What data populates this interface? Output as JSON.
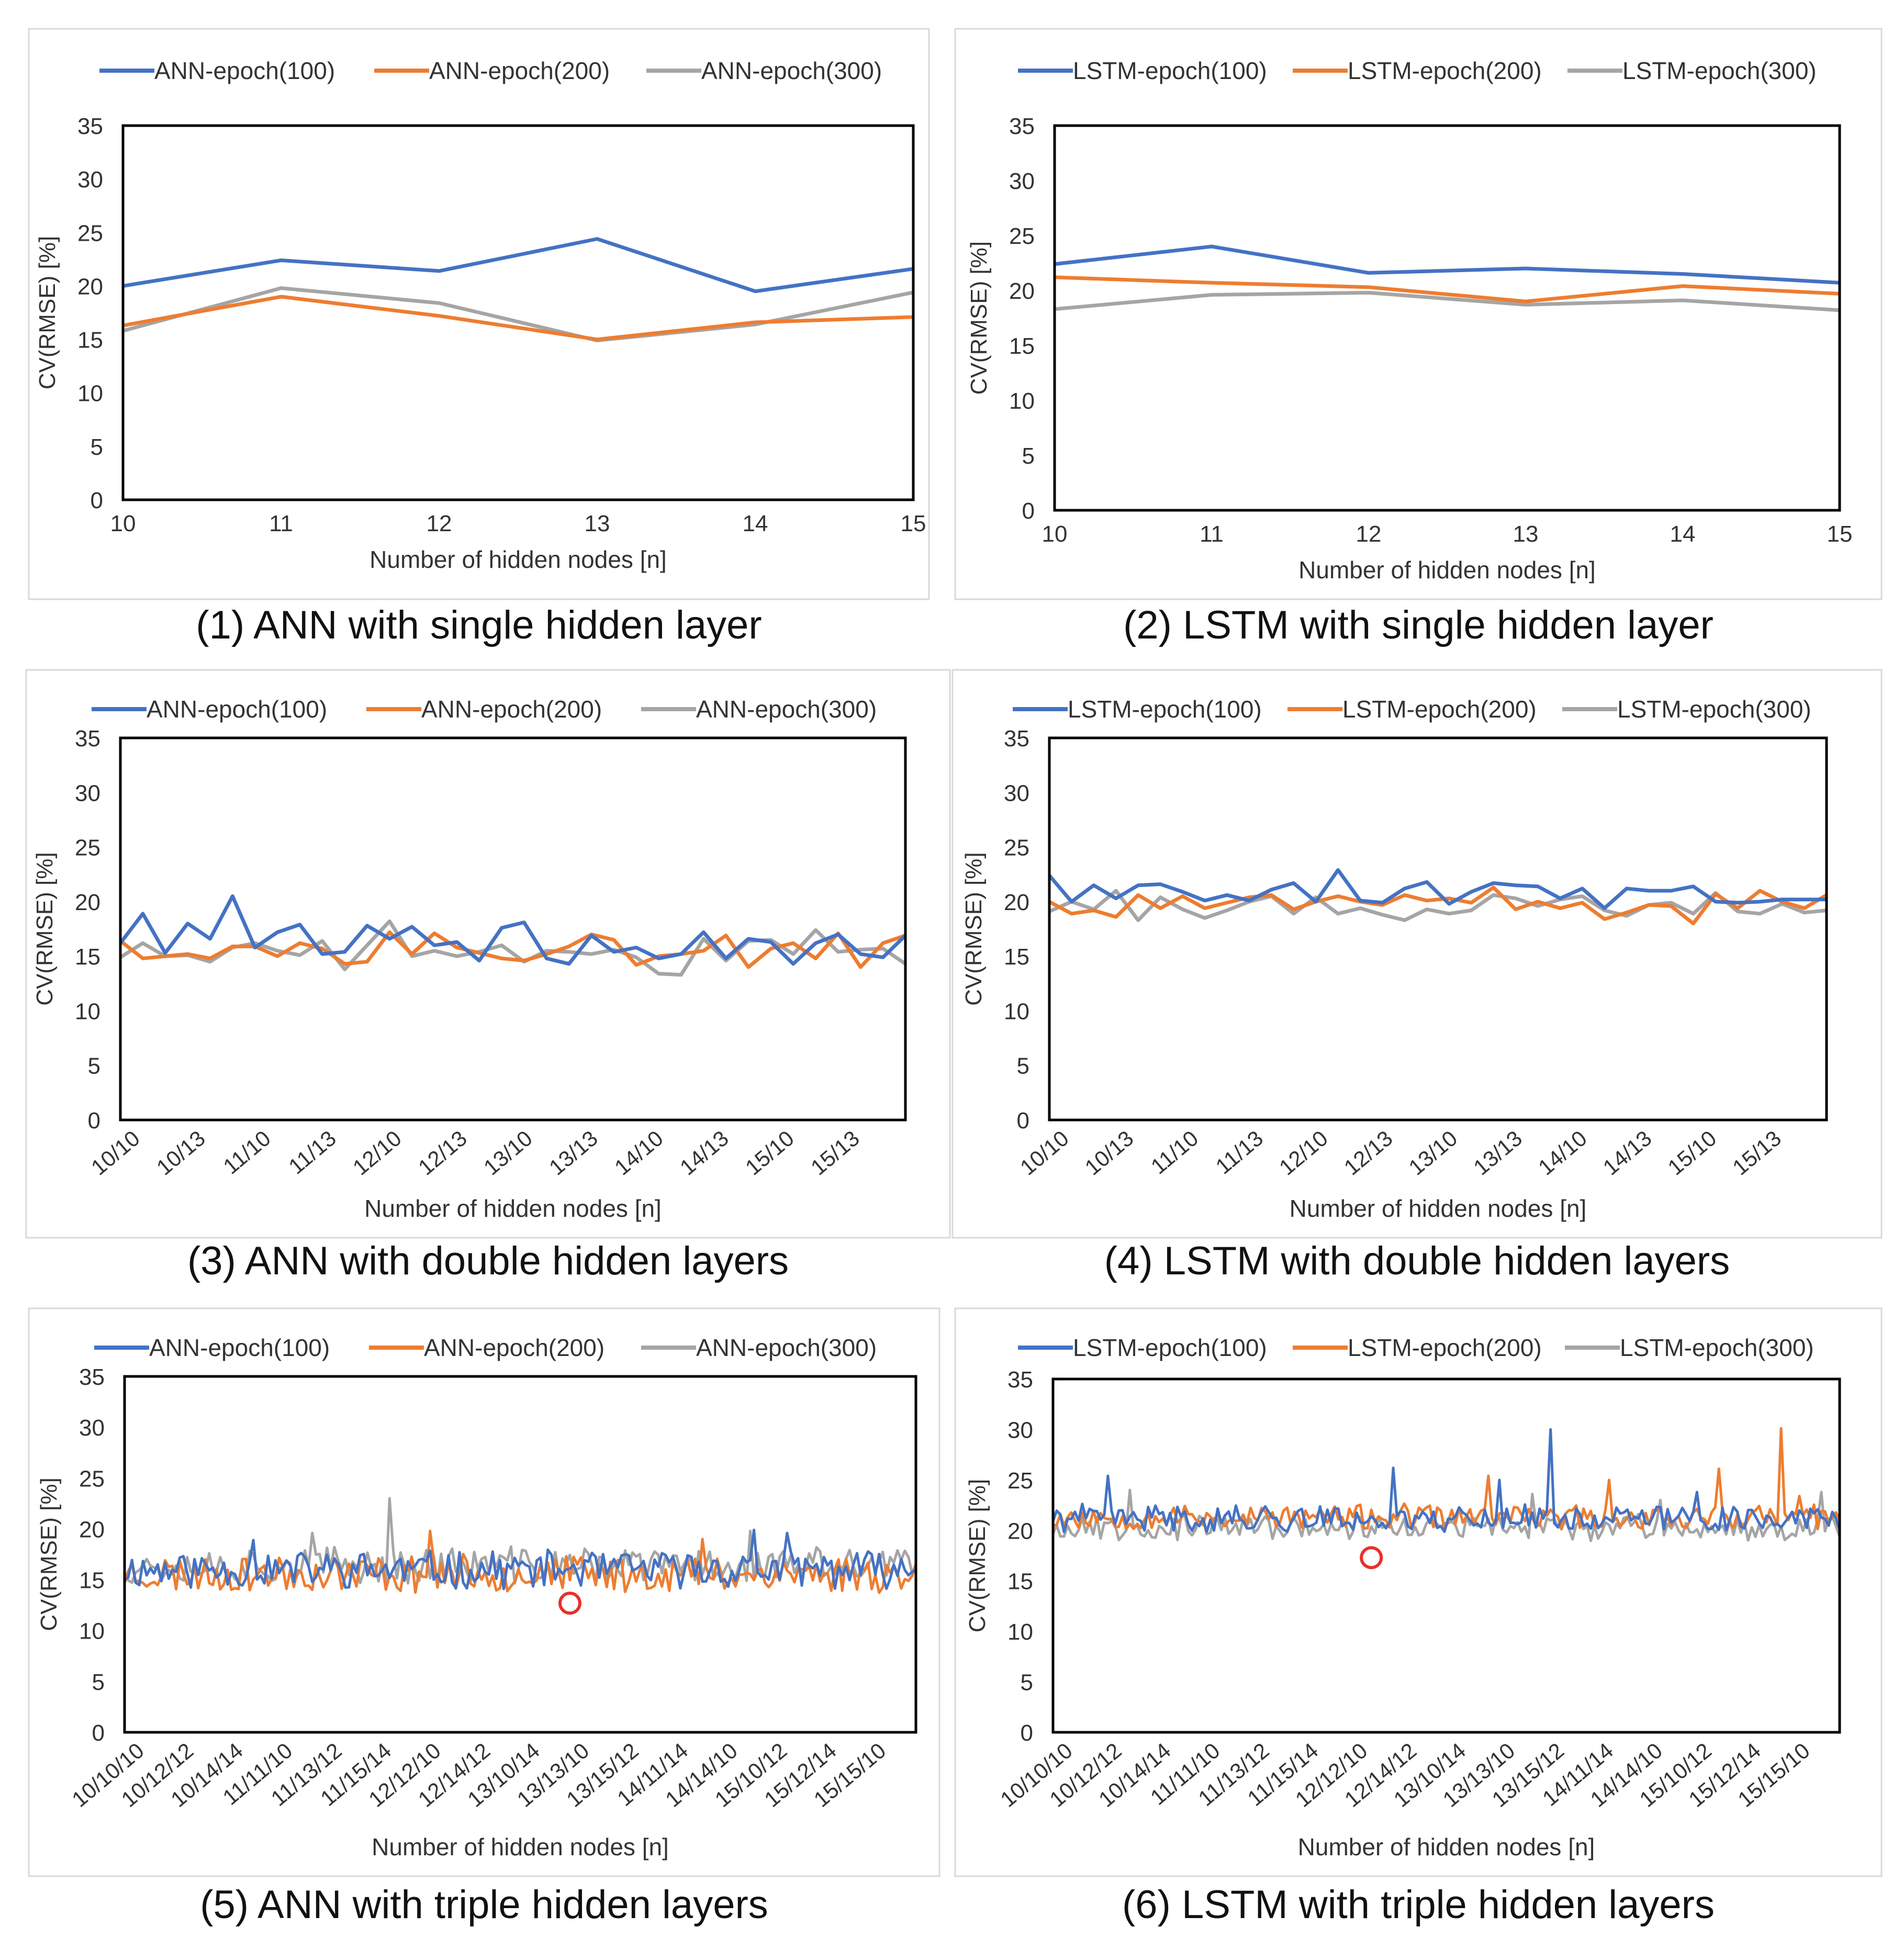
{
  "colors": {
    "series_100": "#4472C4",
    "series_200": "#ED7D31",
    "series_300": "#A5A5A5",
    "marker": "#E8312A",
    "frame": "#D9D9D9",
    "plot_border": "#000000"
  },
  "chart_data": [
    {
      "id": "ann-single",
      "type": "line",
      "caption": "(1) ANN with single hidden layer",
      "xlabel": "Number of hidden nodes [n]",
      "ylabel": "CV(RMSE) [%]",
      "ylim": [
        0,
        35
      ],
      "yticks": [
        "0",
        "5",
        "10",
        "15",
        "20",
        "25",
        "30",
        "35"
      ],
      "x_tick_labels": [
        "10",
        "11",
        "12",
        "13",
        "14",
        "15"
      ],
      "x_tick_rotated": false,
      "legend": [
        "ANN-epoch(100)",
        "ANN-epoch(200)",
        "ANN-epoch(300)"
      ],
      "series": [
        {
          "name": "ANN-epoch(100)",
          "values": [
            20.0,
            22.4,
            21.4,
            24.4,
            19.5,
            21.6
          ]
        },
        {
          "name": "ANN-epoch(200)",
          "values": [
            16.3,
            19.0,
            17.2,
            15.0,
            16.6,
            17.1
          ]
        },
        {
          "name": "ANN-epoch(300)",
          "values": [
            15.8,
            19.8,
            18.4,
            14.9,
            16.4,
            19.4
          ]
        }
      ]
    },
    {
      "id": "lstm-single",
      "type": "line",
      "caption": "(2) LSTM with single hidden layer",
      "xlabel": "Number of hidden nodes [n]",
      "ylabel": "CV(RMSE) [%]",
      "ylim": [
        0,
        35
      ],
      "yticks": [
        "0",
        "5",
        "10",
        "15",
        "20",
        "25",
        "30",
        "35"
      ],
      "x_tick_labels": [
        "10",
        "11",
        "12",
        "13",
        "14",
        "15"
      ],
      "x_tick_rotated": false,
      "legend": [
        "LSTM-epoch(100)",
        "LSTM-epoch(200)",
        "LSTM-epoch(300)"
      ],
      "series": [
        {
          "name": "LSTM-epoch(100)",
          "values": [
            22.4,
            24.0,
            21.6,
            22.0,
            21.5,
            20.7
          ]
        },
        {
          "name": "LSTM-epoch(200)",
          "values": [
            21.2,
            20.7,
            20.3,
            19.0,
            20.4,
            19.7
          ]
        },
        {
          "name": "LSTM-epoch(300)",
          "values": [
            18.3,
            19.6,
            19.8,
            18.7,
            19.1,
            18.2
          ]
        }
      ]
    },
    {
      "id": "ann-double",
      "type": "line",
      "caption": "(3) ANN with double hidden layers",
      "xlabel": "Number of hidden nodes [n]",
      "ylabel": "CV(RMSE) [%]",
      "ylim": [
        0,
        35
      ],
      "yticks": [
        "0",
        "5",
        "10",
        "15",
        "20",
        "25",
        "30",
        "35"
      ],
      "x_tick_labels": [
        "10/10",
        "10/13",
        "11/10",
        "11/13",
        "12/10",
        "12/13",
        "13/10",
        "13/13",
        "14/10",
        "14/13",
        "15/10",
        "15/13"
      ],
      "x_tick_rotated": true,
      "legend": [
        "ANN-epoch(100)",
        "ANN-epoch(200)",
        "ANN-epoch(300)"
      ],
      "series": [
        {
          "name": "ANN-epoch(100)",
          "values": [
            16.2,
            18.9,
            15.3,
            18.0,
            16.6,
            20.5,
            15.8,
            17.2,
            17.9,
            15.2,
            15.4,
            17.8,
            16.6,
            17.7,
            16.0,
            16.3,
            14.6,
            17.6,
            18.1,
            14.8,
            14.3,
            16.9,
            15.4,
            15.8,
            14.8,
            15.2,
            17.2,
            14.8,
            16.6,
            16.3,
            14.3,
            16.2,
            17.0,
            15.2,
            14.9,
            16.9
          ]
        },
        {
          "name": "ANN-epoch(200)",
          "values": [
            16.4,
            14.8,
            15.0,
            15.2,
            14.8,
            15.9,
            15.9,
            15.0,
            16.2,
            15.7,
            14.3,
            14.5,
            17.2,
            15.2,
            17.1,
            15.8,
            15.3,
            14.8,
            14.6,
            15.2,
            15.9,
            17.0,
            16.5,
            14.2,
            15.0,
            15.2,
            15.5,
            16.9,
            14.0,
            15.7,
            16.2,
            14.8,
            17.1,
            14.0,
            16.2,
            16.9
          ]
        },
        {
          "name": "ANN-epoch(300)",
          "values": [
            14.9,
            16.2,
            15.0,
            15.1,
            14.5,
            15.8,
            16.2,
            15.5,
            15.1,
            16.4,
            13.8,
            16.0,
            18.2,
            15.0,
            15.5,
            15.0,
            15.4,
            16.0,
            14.5,
            15.5,
            15.4,
            15.2,
            15.6,
            14.9,
            13.4,
            13.3,
            16.6,
            14.6,
            16.4,
            16.5,
            15.2,
            17.4,
            15.4,
            15.6,
            15.7,
            14.3
          ]
        }
      ]
    },
    {
      "id": "lstm-double",
      "type": "line",
      "caption": "(4) LSTM with double hidden layers",
      "xlabel": "Number of hidden nodes [n]",
      "ylabel": "CV(RMSE) [%]",
      "ylim": [
        0,
        35
      ],
      "yticks": [
        "0",
        "5",
        "10",
        "15",
        "20",
        "25",
        "30",
        "35"
      ],
      "x_tick_labels": [
        "10/10",
        "10/13",
        "11/10",
        "11/13",
        "12/10",
        "12/13",
        "13/10",
        "13/13",
        "14/10",
        "14/13",
        "15/10",
        "15/13"
      ],
      "x_tick_rotated": true,
      "legend": [
        "LSTM-epoch(100)",
        "LSTM-epoch(200)",
        "LSTM-epoch(300)"
      ],
      "series": [
        {
          "name": "LSTM-epoch(100)",
          "values": [
            22.4,
            20.0,
            21.5,
            20.3,
            21.5,
            21.6,
            20.9,
            20.1,
            20.6,
            20.1,
            21.1,
            21.7,
            20.0,
            22.9,
            20.1,
            19.9,
            21.2,
            21.8,
            19.8,
            20.9,
            21.7,
            21.5,
            21.4,
            20.3,
            21.2,
            19.4,
            21.2,
            21.0,
            21.0,
            21.4,
            20.0,
            19.9,
            20.0,
            20.2,
            20.2,
            20.2
          ]
        },
        {
          "name": "LSTM-epoch(200)",
          "values": [
            20.0,
            18.9,
            19.2,
            18.6,
            20.6,
            19.4,
            20.5,
            19.4,
            19.9,
            20.4,
            20.6,
            19.3,
            20.0,
            20.5,
            20.0,
            19.7,
            20.6,
            20.1,
            20.3,
            19.9,
            21.3,
            19.3,
            20.0,
            19.4,
            19.9,
            18.4,
            19.0,
            19.7,
            19.6,
            18.0,
            20.7,
            19.4,
            21.0,
            20.0,
            19.4,
            20.6
          ]
        },
        {
          "name": "LSTM-epoch(300)",
          "values": [
            19.1,
            20.0,
            19.3,
            21.0,
            18.3,
            20.4,
            19.3,
            18.5,
            19.2,
            20.0,
            20.5,
            18.9,
            20.4,
            18.9,
            19.4,
            18.8,
            18.3,
            19.3,
            18.9,
            19.2,
            20.6,
            20.3,
            19.6,
            20.2,
            20.5,
            19.2,
            18.7,
            19.7,
            19.9,
            18.9,
            20.8,
            19.1,
            18.9,
            19.8,
            19.0,
            19.2
          ]
        }
      ]
    },
    {
      "id": "ann-triple",
      "type": "line",
      "caption": "(5) ANN with triple hidden layers",
      "xlabel": "Number of hidden nodes [n]",
      "ylabel": "CV(RMSE) [%]",
      "ylim": [
        0,
        35
      ],
      "yticks": [
        "0",
        "5",
        "10",
        "15",
        "20",
        "25",
        "30",
        "35"
      ],
      "x_tick_labels": [
        "10/10/10",
        "10/12/12",
        "10/14/14",
        "11/11/10",
        "11/13/12",
        "11/15/14",
        "12/12/10",
        "12/14/12",
        "13/10/14",
        "13/13/10",
        "13/15/12",
        "14/11/14",
        "14/14/10",
        "15/10/12",
        "15/12/14",
        "15/15/10"
      ],
      "x_tick_rotated": true,
      "legend": [
        "ANN-epoch(100)",
        "ANN-epoch(200)",
        "ANN-epoch(300)"
      ],
      "generated": true,
      "points": 216,
      "series": [
        {
          "name": "ANN-epoch(100)",
          "base": 16.0,
          "amp": 1.7,
          "seed": 11,
          "spikes": [
            [
              35,
              18.9
            ],
            [
              171,
              19.9
            ],
            [
              180,
              19.6
            ]
          ]
        },
        {
          "name": "ANN-epoch(200)",
          "base": 15.6,
          "amp": 1.7,
          "seed": 23,
          "spikes": [
            [
              83,
              19.8
            ],
            [
              157,
              19.0
            ]
          ]
        },
        {
          "name": "ANN-epoch(300)",
          "base": 16.4,
          "amp": 1.7,
          "seed": 37,
          "spikes": [
            [
              72,
              23.0
            ],
            [
              51,
              19.6
            ],
            [
              170,
              19.8
            ]
          ]
        }
      ],
      "optimum_marker": {
        "index": 121,
        "value": 12.7
      }
    },
    {
      "id": "lstm-triple",
      "type": "line",
      "caption": "(6) LSTM with triple hidden layers",
      "xlabel": "Number of hidden nodes [n]",
      "ylabel": "CV(RMSE) [%]",
      "ylim": [
        0,
        35
      ],
      "yticks": [
        "0",
        "5",
        "10",
        "15",
        "20",
        "25",
        "30",
        "35"
      ],
      "x_tick_labels": [
        "10/10/10",
        "10/12/12",
        "10/14/14",
        "11/11/10",
        "11/13/12",
        "11/15/14",
        "12/12/10",
        "12/14/12",
        "13/10/14",
        "13/13/10",
        "13/15/12",
        "14/11/14",
        "14/14/10",
        "15/10/12",
        "15/12/14",
        "15/15/10"
      ],
      "x_tick_rotated": true,
      "legend": [
        "LSTM-epoch(100)",
        "LSTM-epoch(200)",
        "LSTM-epoch(300)"
      ],
      "generated": true,
      "points": 216,
      "series": [
        {
          "name": "LSTM-epoch(100)",
          "base": 21.2,
          "amp": 1.2,
          "seed": 41,
          "spikes": [
            [
              15,
              25.4
            ],
            [
              93,
              26.2
            ],
            [
              136,
              30.0
            ],
            [
              122,
              25.0
            ],
            [
              176,
              23.8
            ]
          ]
        },
        {
          "name": "LSTM-epoch(200)",
          "base": 21.3,
          "amp": 1.1,
          "seed": 53,
          "spikes": [
            [
              119,
              25.4
            ],
            [
              182,
              26.1
            ],
            [
              199,
              30.1
            ],
            [
              152,
              25.0
            ],
            [
              204,
              23.4
            ]
          ]
        },
        {
          "name": "LSTM-epoch(300)",
          "base": 20.3,
          "amp": 1.1,
          "seed": 67,
          "spikes": [
            [
              21,
              24.0
            ],
            [
              131,
              23.6
            ],
            [
              166,
              23.0
            ],
            [
              210,
              23.8
            ]
          ]
        }
      ],
      "optimum_marker": {
        "index": 87,
        "value": 17.3
      }
    }
  ]
}
